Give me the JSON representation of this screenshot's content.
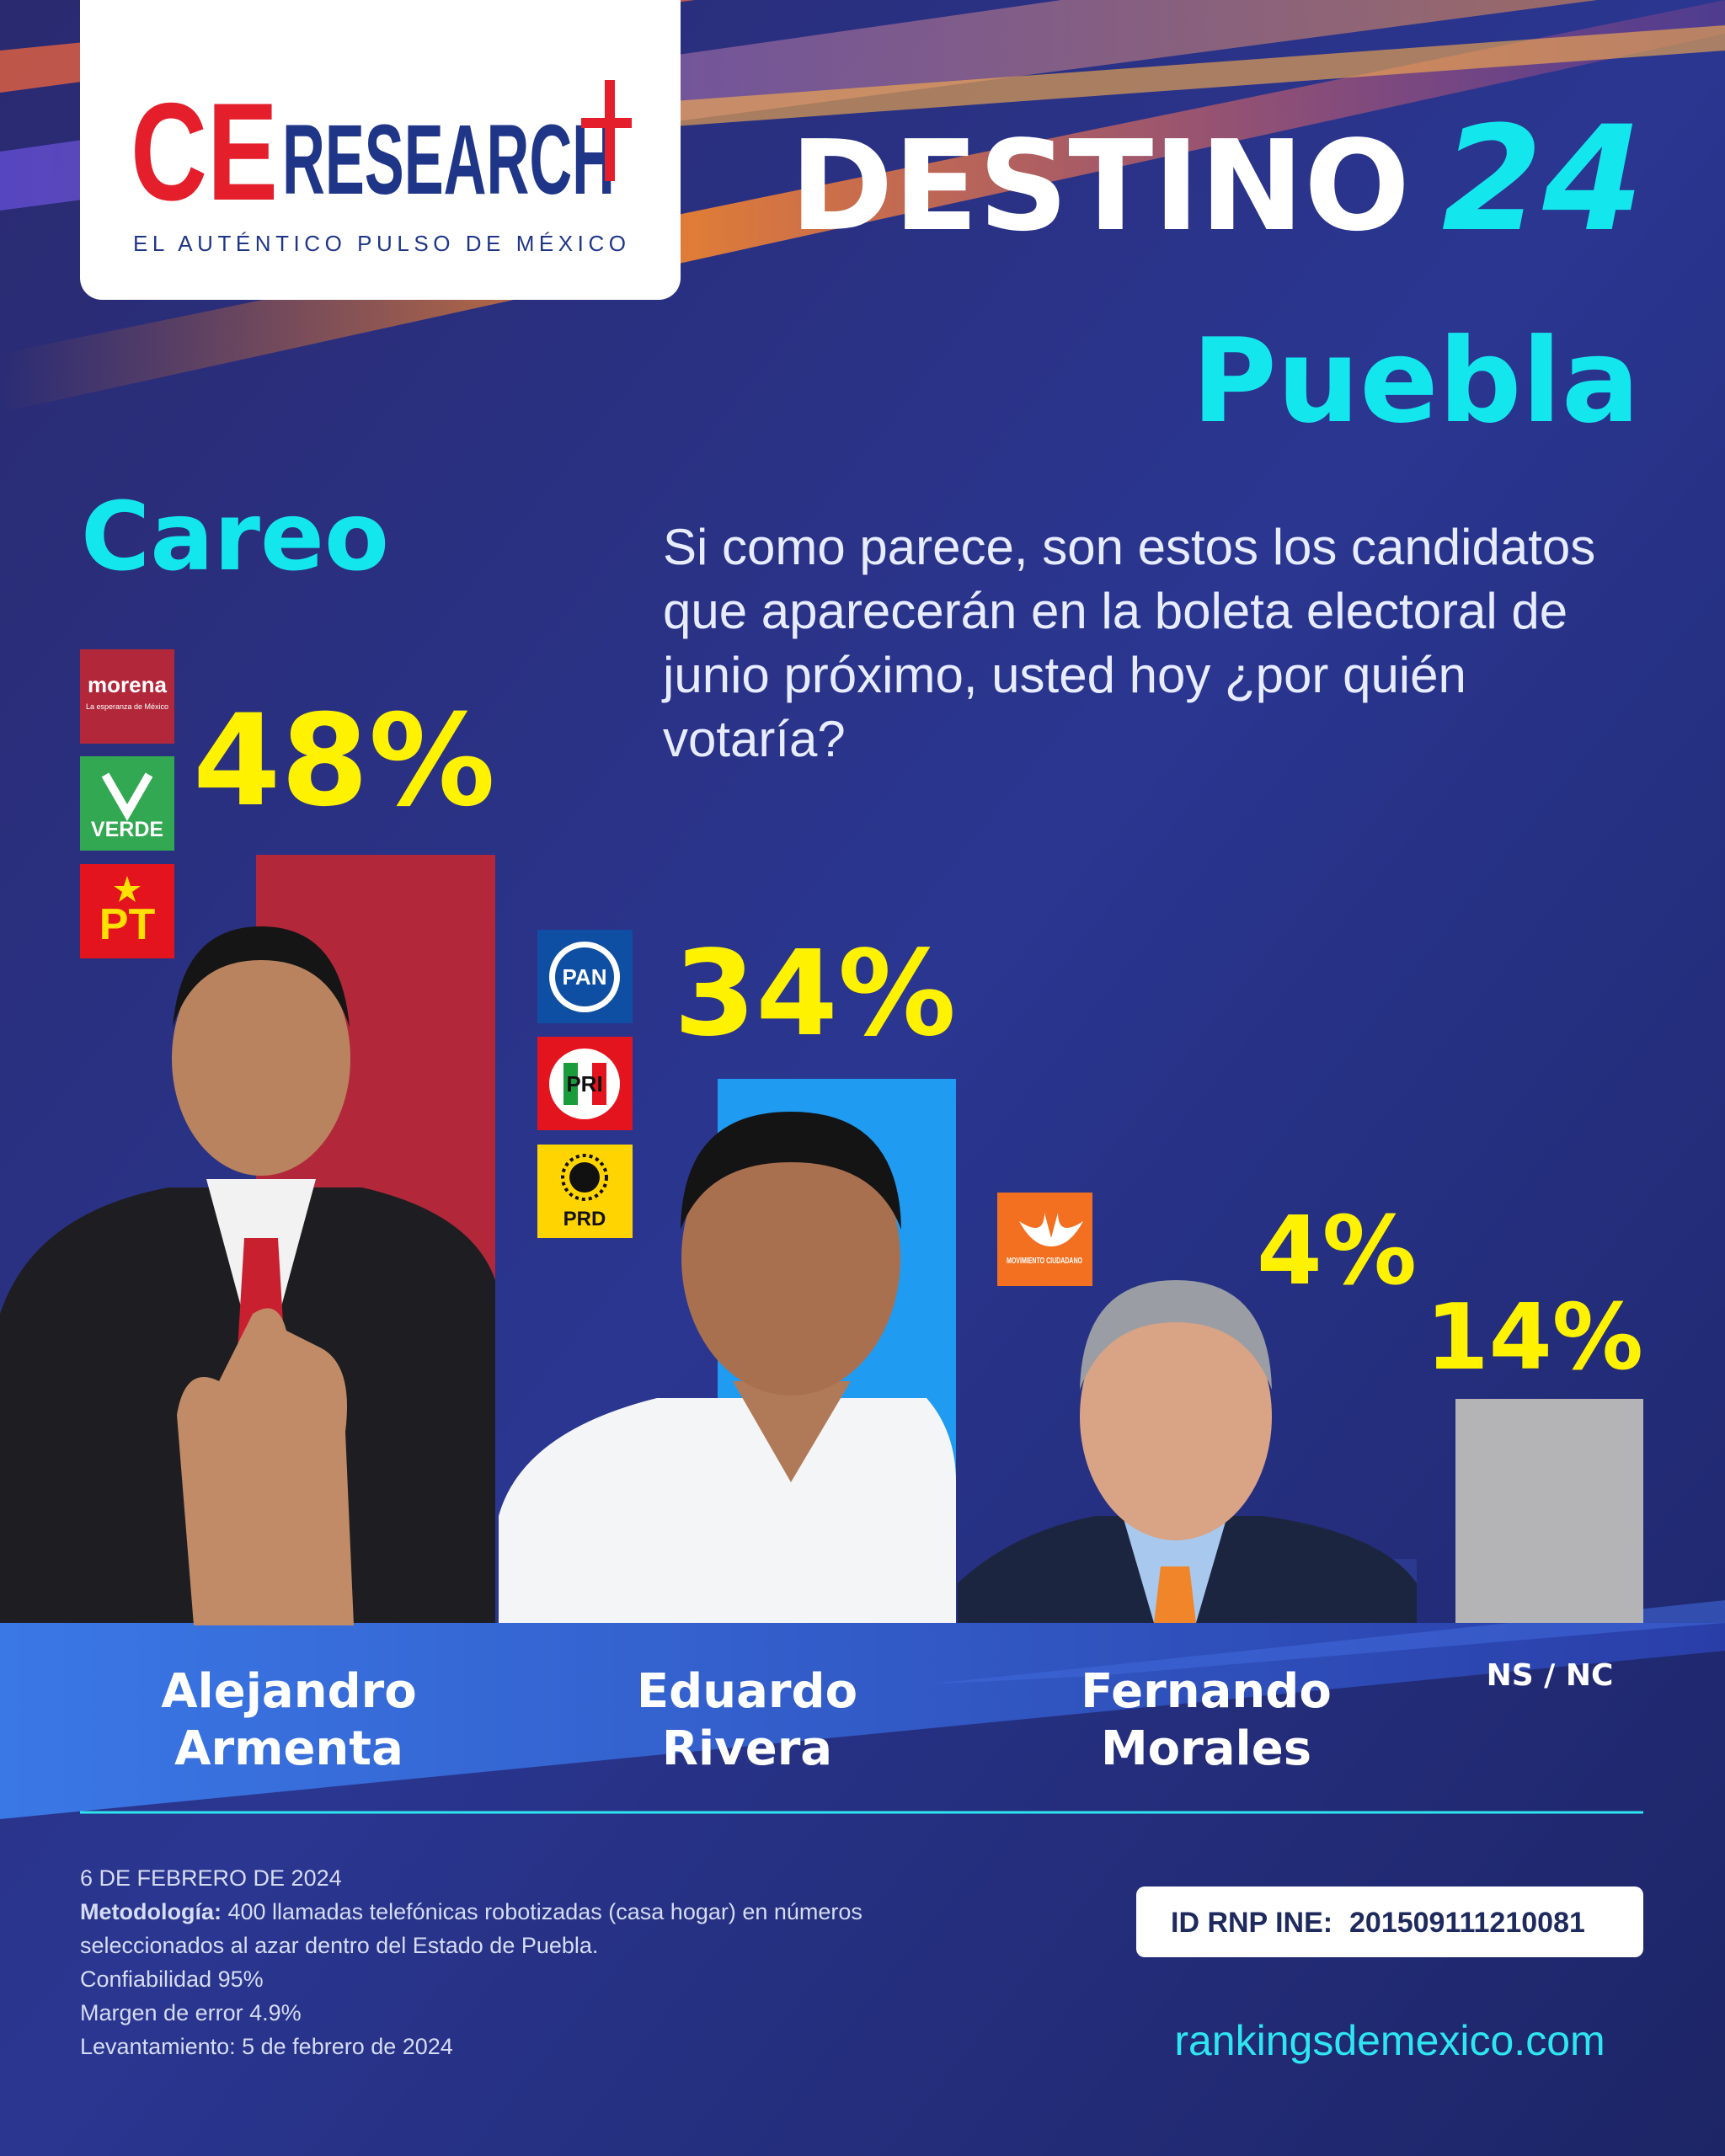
{
  "header": {
    "logo_ce": "CE",
    "logo_research": "RESEARCH",
    "logo_tagline": "EL AUTÉNTICO PULSO DE MÉXICO",
    "title": "DESTINO",
    "title_number": "24",
    "state": "Puebla"
  },
  "section": "Careo",
  "question": "Si como parece, son estos los candidatos que aparecerán en la boleta electoral de junio próximo, usted hoy ¿por quién votaría?",
  "parties": {
    "morena": "morena",
    "morena_tagline": "La esperanza de México",
    "verde": "VERDE",
    "pt": "PT",
    "pan": "PAN",
    "pri": "PRI",
    "prd": "PRD",
    "mc": "MOVIMIENTO CIUDADANO"
  },
  "chart_data": {
    "type": "bar",
    "categories": [
      "Alejandro Armenta",
      "Eduardo Rivera",
      "Fernando Morales",
      "NS / NC"
    ],
    "values": [
      48,
      34,
      4,
      14
    ],
    "value_labels": [
      "48%",
      "34%",
      "4%",
      "14%"
    ],
    "colors": [
      "#b2283a",
      "#1f9bf2",
      "#2b3a8f",
      "#b4b4b6"
    ]
  },
  "footer": {
    "date": "6 DE FEBRERO DE 2024",
    "methodology_label": "Metodología:",
    "methodology_text": "400 llamadas telefónicas robotizadas (casa hogar) en números seleccionados al azar dentro del Estado de Puebla.",
    "confidence": "Confiabilidad 95%",
    "margin": "Margen de error 4.9%",
    "fieldwork": "Levantamiento: 5 de febrero de 2024",
    "rnp_label": "ID RNP INE:",
    "rnp_id": "201509111210081",
    "url": "rankingsdemexico.com"
  }
}
